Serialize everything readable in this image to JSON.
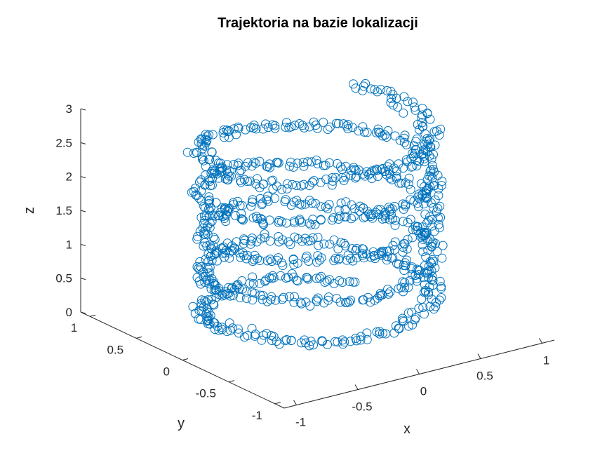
{
  "chart_data": {
    "type": "scatter3d",
    "title": "Trajektoria na bazie lokalizacji",
    "xlabel": "x",
    "ylabel": "y",
    "zlabel": "z",
    "xlim": [
      -1.1,
      1.1
    ],
    "ylim": [
      -1.1,
      1.1
    ],
    "zlim": [
      0,
      3
    ],
    "xticks": [
      {
        "v": -1,
        "label": "-1"
      },
      {
        "v": -0.5,
        "label": "-0.5"
      },
      {
        "v": 0,
        "label": "0"
      },
      {
        "v": 0.5,
        "label": "0.5"
      },
      {
        "v": 1,
        "label": "1"
      }
    ],
    "yticks": [
      {
        "v": -1,
        "label": "-1"
      },
      {
        "v": -0.5,
        "label": "-0.5"
      },
      {
        "v": 0,
        "label": "0"
      },
      {
        "v": 0.5,
        "label": "0.5"
      },
      {
        "v": 1,
        "label": "1"
      }
    ],
    "zticks": [
      {
        "v": 0,
        "label": "0"
      },
      {
        "v": 0.5,
        "label": "0.5"
      },
      {
        "v": 1,
        "label": "1"
      },
      {
        "v": 1.5,
        "label": "1.5"
      },
      {
        "v": 2,
        "label": "2"
      },
      {
        "v": 2.5,
        "label": "2.5"
      },
      {
        "v": 3,
        "label": "3"
      }
    ],
    "grid": false,
    "marker": "circle",
    "marker_color": "#0072bd",
    "trajectory": {
      "shape": "helix",
      "radius": 0.75,
      "z_start": 0.05,
      "z_end": 2.95,
      "turns": 5,
      "points": 1000,
      "noise": 0.06
    }
  }
}
